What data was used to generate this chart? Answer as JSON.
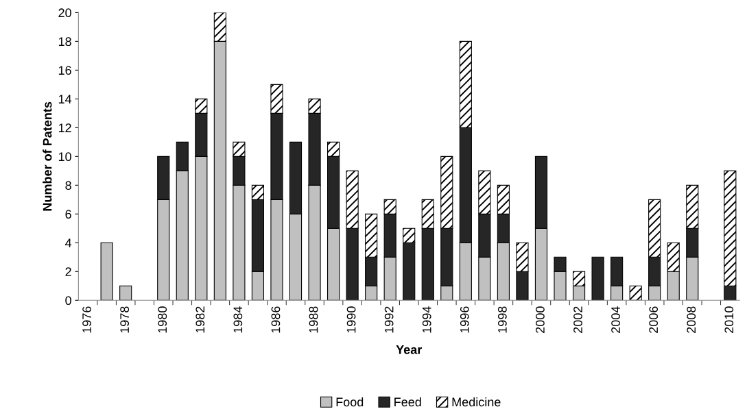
{
  "chart_data": {
    "type": "bar",
    "stacked": true,
    "xlabel": "Year",
    "ylabel": "Number of Patents",
    "categories": [
      "1976",
      null,
      "1978",
      null,
      "1980",
      null,
      "1982",
      null,
      "1984",
      null,
      "1986",
      null,
      "1988",
      null,
      "1990",
      null,
      "1992",
      null,
      "1994",
      null,
      "1996",
      null,
      "1998",
      null,
      "2000",
      null,
      "2002",
      null,
      "2004",
      null,
      "2006",
      null,
      "2008",
      null,
      "2010"
    ],
    "series": [
      {
        "name": "Food",
        "color": "#c0c0c0",
        "values": [
          0,
          4,
          1,
          0,
          7,
          9,
          10,
          18,
          8,
          2,
          7,
          6,
          8,
          5,
          0,
          1,
          3,
          0,
          0,
          1,
          4,
          3,
          4,
          0,
          5,
          2,
          1,
          0,
          1,
          0,
          1,
          2,
          3,
          0,
          0
        ]
      },
      {
        "name": "Feed",
        "color": "#262626",
        "values": [
          0,
          0,
          0,
          0,
          3,
          2,
          3,
          0,
          2,
          5,
          6,
          5,
          5,
          5,
          5,
          2,
          3,
          4,
          5,
          4,
          8,
          3,
          2,
          2,
          5,
          1,
          0,
          3,
          2,
          0,
          2,
          0,
          2,
          0,
          1
        ]
      },
      {
        "name": "Medicine",
        "color": "#ffffff",
        "values": [
          0,
          0,
          0,
          0,
          0,
          0,
          1,
          2,
          1,
          1,
          2,
          0,
          1,
          1,
          4,
          3,
          1,
          1,
          2,
          5,
          6,
          3,
          2,
          2,
          0,
          0,
          1,
          0,
          0,
          1,
          4,
          2,
          3,
          0,
          8
        ]
      }
    ],
    "ylim": [
      0,
      20
    ],
    "yticks": [
      0,
      2,
      4,
      6,
      8,
      10,
      12,
      14,
      16,
      18,
      20
    ],
    "grid": false,
    "legend": "bottom"
  }
}
